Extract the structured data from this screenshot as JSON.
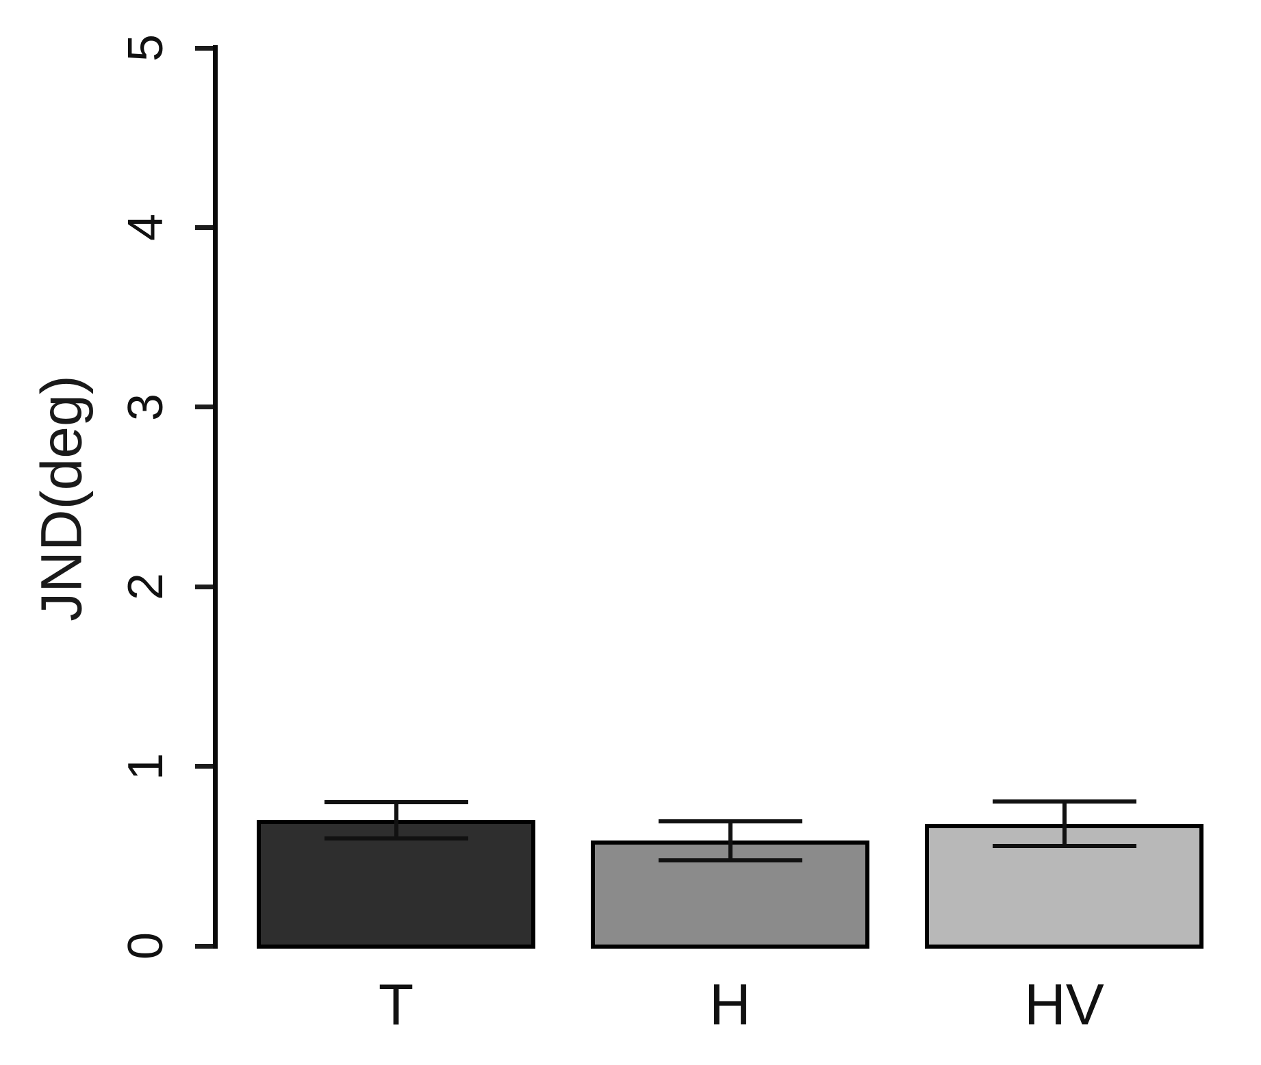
{
  "chart_data": {
    "type": "bar",
    "title": "",
    "xlabel": "",
    "ylabel": "JND(deg)",
    "categories": [
      "T",
      "H",
      "HV"
    ],
    "values": [
      0.7,
      0.585,
      0.68
    ],
    "error_bars": true,
    "errors": [
      0.1,
      0.11,
      0.125
    ],
    "bar_colors": [
      "#2e2e2e",
      "#8b8b8b",
      "#b8b8b8"
    ],
    "bar_border_color": "#000000",
    "ylim": [
      0,
      5
    ],
    "yticks": [
      0,
      1,
      2,
      3,
      4,
      5
    ],
    "grid": false,
    "legend": false
  }
}
